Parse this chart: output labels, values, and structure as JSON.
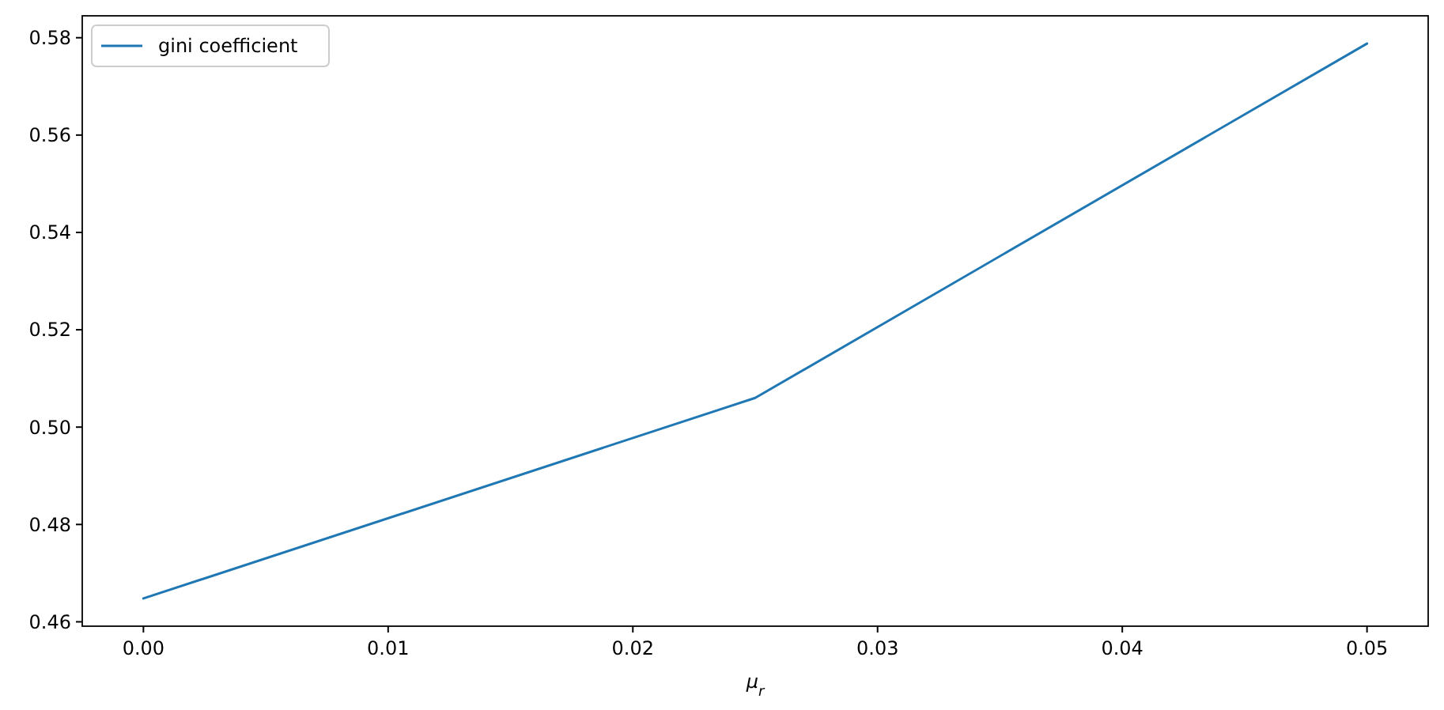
{
  "chart_data": {
    "type": "line",
    "xlabel": "μ$_{r}$",
    "x": [
      0,
      0.025,
      0.05
    ],
    "series": [
      {
        "name": "gini coefficient",
        "color": "#1f77b4",
        "values": [
          0.4648,
          0.506,
          0.5788
        ]
      }
    ],
    "xlim": [
      -0.0025,
      0.0525
    ],
    "xticks": [
      {
        "value": 0,
        "label": "0.00"
      },
      {
        "value": 0.01,
        "label": "0.01"
      },
      {
        "value": 0.02,
        "label": "0.02"
      },
      {
        "value": 0.03,
        "label": "0.03"
      },
      {
        "value": 0.04,
        "label": "0.04"
      },
      {
        "value": 0.05,
        "label": "0.05"
      }
    ],
    "ylim": [
      0.4591,
      0.5845
    ],
    "yticks": [
      {
        "value": 0.46,
        "label": "0.46"
      },
      {
        "value": 0.48,
        "label": "0.48"
      },
      {
        "value": 0.5,
        "label": "0.50"
      },
      {
        "value": 0.52,
        "label": "0.52"
      },
      {
        "value": 0.54,
        "label": "0.54"
      },
      {
        "value": 0.56,
        "label": "0.56"
      },
      {
        "value": 0.58,
        "label": "0.58"
      }
    ],
    "legend": "top left",
    "grid": false,
    "marker": "none",
    "line_style": "solid"
  }
}
